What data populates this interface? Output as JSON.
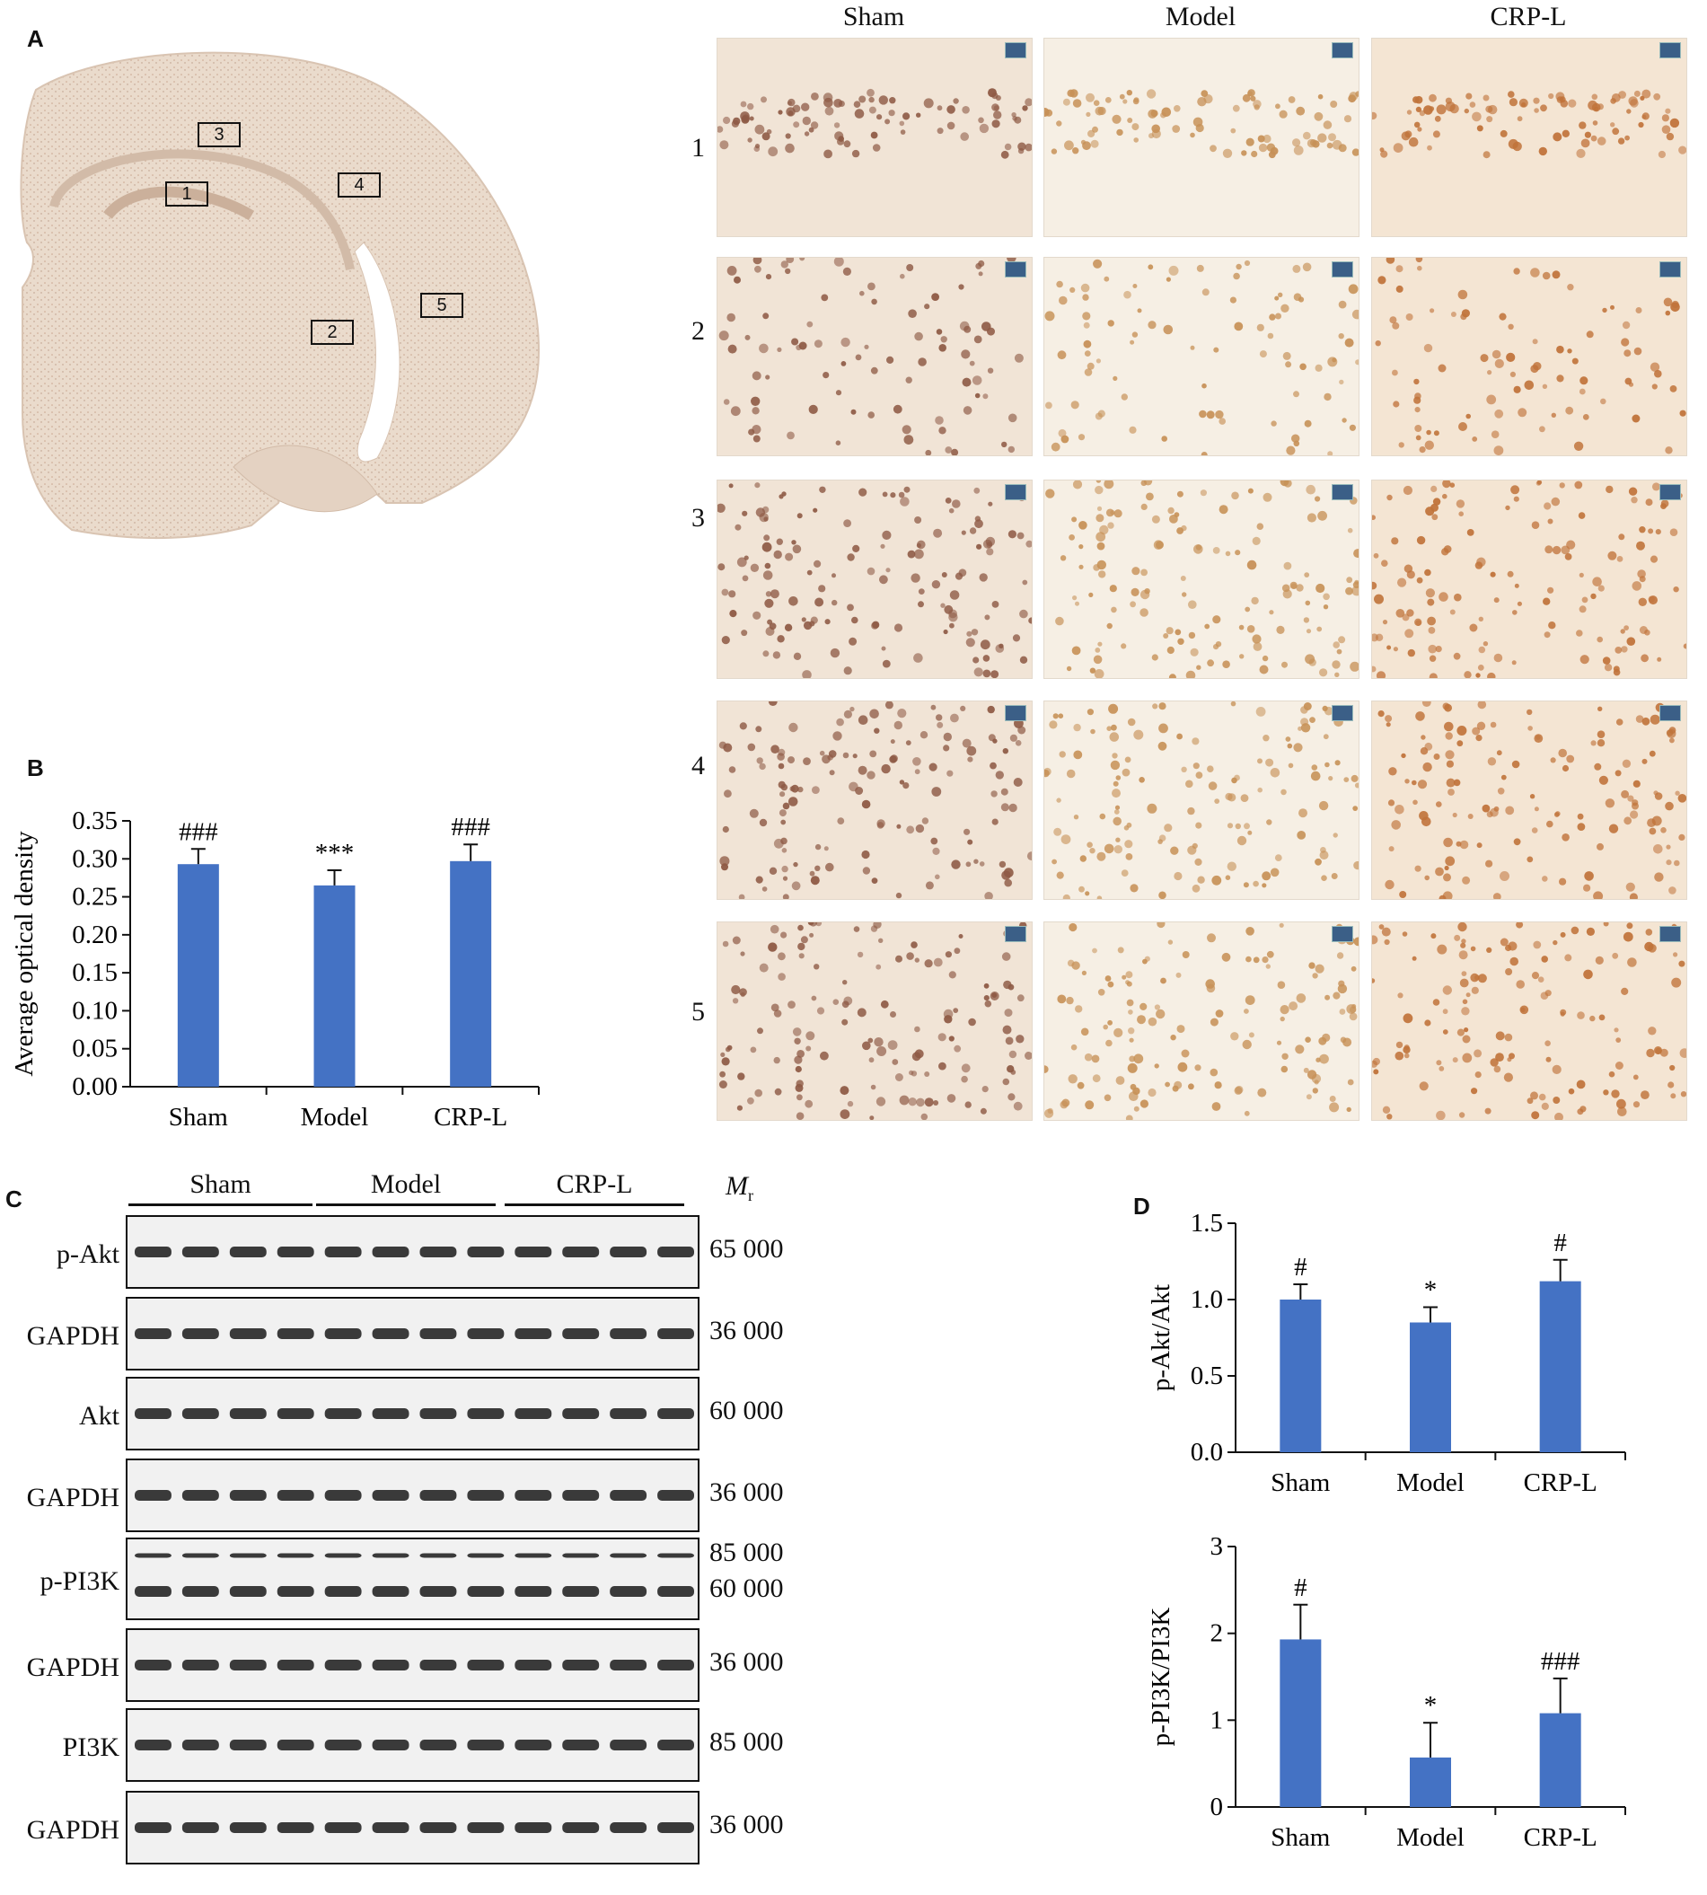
{
  "panels": {
    "A": "A",
    "B": "B",
    "C": "C",
    "D": "D"
  },
  "brain_regions": [
    "1",
    "2",
    "3",
    "4",
    "5"
  ],
  "micro_columns": [
    "Sham",
    "Model",
    "CRP-L"
  ],
  "micro_rows": [
    "1",
    "2",
    "3",
    "4",
    "5"
  ],
  "colors": {
    "bar": "#4472C4",
    "tissue_sham": "#f1e4d6",
    "tissue_model": "#f6efe4",
    "tissue_crp": "#f4e5d3",
    "nucleus_sham": "#8e5a45",
    "nucleus_model": "#c79157",
    "nucleus_crp": "#c0733a"
  },
  "blots": {
    "groups": [
      "Sham",
      "Model",
      "CRP-L"
    ],
    "mr_label": "M",
    "mr_sub": "r",
    "rows": [
      {
        "label": "p-Akt",
        "mw": [
          "65 000"
        ]
      },
      {
        "label": "GAPDH",
        "mw": [
          "36 000"
        ]
      },
      {
        "label": "Akt",
        "mw": [
          "60 000"
        ]
      },
      {
        "label": "GAPDH",
        "mw": [
          "36 000"
        ]
      },
      {
        "label": "p-PI3K",
        "mw": [
          "85 000",
          "60 000"
        ]
      },
      {
        "label": "GAPDH",
        "mw": [
          "36 000"
        ]
      },
      {
        "label": "PI3K",
        "mw": [
          "85 000"
        ]
      },
      {
        "label": "GAPDH",
        "mw": [
          "36 000"
        ]
      }
    ]
  },
  "chart_data": [
    {
      "type": "bar",
      "panel": "B",
      "categories": [
        "Sham",
        "Model",
        "CRP-L"
      ],
      "values": [
        0.293,
        0.265,
        0.297
      ],
      "errors": [
        0.02,
        0.02,
        0.022
      ],
      "annotations": [
        "###",
        "***",
        "###"
      ],
      "ylabel": "Average optical density",
      "ylim": [
        0,
        0.35
      ],
      "yticks": [
        "0.00",
        "0.05",
        "0.10",
        "0.15",
        "0.20",
        "0.25",
        "0.30",
        "0.35"
      ],
      "grid": false
    },
    {
      "type": "bar",
      "panel": "D",
      "categories": [
        "Sham",
        "Model",
        "CRP-L"
      ],
      "values": [
        1.0,
        0.85,
        1.12
      ],
      "errors": [
        0.1,
        0.1,
        0.14
      ],
      "annotations": [
        "#",
        "*",
        "#"
      ],
      "ylabel": "p-Akt/Akt",
      "ylim": [
        0,
        1.5
      ],
      "yticks": [
        "0.0",
        "0.5",
        "1.0",
        "1.5"
      ],
      "grid": false
    },
    {
      "type": "bar",
      "panel": "D",
      "categories": [
        "Sham",
        "Model",
        "CRP-L"
      ],
      "values": [
        1.93,
        0.57,
        1.08
      ],
      "errors": [
        0.4,
        0.4,
        0.4
      ],
      "annotations": [
        "#",
        "*",
        "###"
      ],
      "ylabel": "p-PI3K/PI3K",
      "ylim": [
        0,
        3
      ],
      "yticks": [
        "0",
        "1",
        "2",
        "3"
      ],
      "grid": false
    }
  ]
}
